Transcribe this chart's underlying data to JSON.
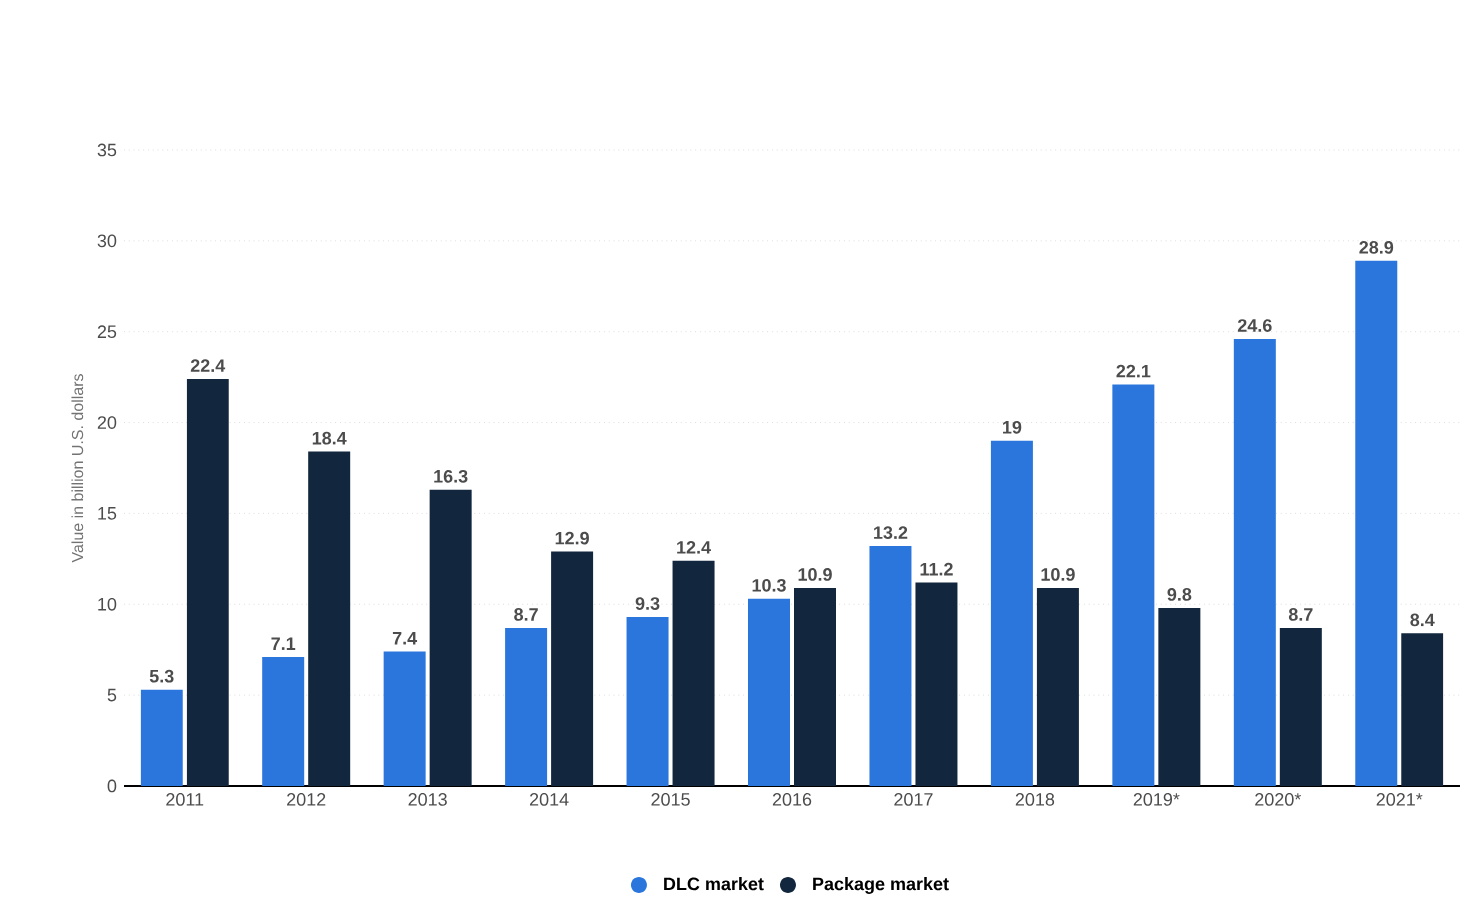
{
  "chart_data": {
    "type": "bar",
    "ylabel": "Value in billion U.S. dollars",
    "categories": [
      "2011",
      "2012",
      "2013",
      "2014",
      "2015",
      "2016",
      "2017",
      "2018",
      "2019*",
      "2020*",
      "2021*"
    ],
    "series": [
      {
        "name": "DLC market",
        "color": "#2a76dd",
        "values": [
          5.3,
          7.1,
          7.4,
          8.7,
          9.3,
          10.3,
          13.2,
          19,
          22.1,
          24.6,
          28.9
        ]
      },
      {
        "name": "Package market",
        "color": "#12263d",
        "values": [
          22.4,
          18.4,
          16.3,
          12.9,
          12.4,
          10.9,
          11.2,
          10.9,
          9.8,
          8.7,
          8.4
        ]
      }
    ],
    "ylim": [
      0,
      35
    ],
    "yticks": [
      0,
      5,
      10,
      15,
      20,
      25,
      30,
      35
    ],
    "grid": "y",
    "legend": "bottom",
    "data_labels": true
  }
}
